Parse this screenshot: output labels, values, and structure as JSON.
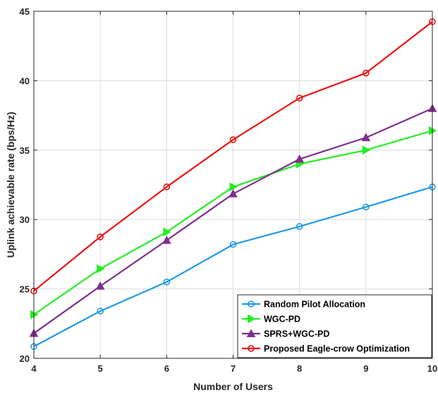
{
  "chart_data": {
    "type": "line",
    "xlabel": "Number of Users",
    "ylabel": "Uplink achievable rate (bps/Hz)",
    "x": [
      4,
      5,
      6,
      7,
      8,
      9,
      10
    ],
    "xlim": [
      4,
      10
    ],
    "ylim": [
      20,
      45
    ],
    "xticks": [
      "4",
      "5",
      "6",
      "7",
      "8",
      "9",
      "10"
    ],
    "yticks": [
      "20",
      "25",
      "30",
      "35",
      "40",
      "45"
    ],
    "grid": true,
    "legend_position": "bottom-right",
    "series": [
      {
        "name": "Random Pilot Allocation",
        "color": "#1f9be6",
        "marker": "circle",
        "values": [
          20.85,
          23.4,
          25.5,
          28.2,
          29.5,
          30.9,
          32.35
        ]
      },
      {
        "name": "WGC-PD",
        "color": "#22ee22",
        "marker": "triangle-right",
        "values": [
          23.15,
          26.45,
          29.1,
          32.35,
          34.0,
          35.0,
          36.4
        ]
      },
      {
        "name": "SPRS+WGC-PD",
        "color": "#7e2f8e",
        "marker": "triangle-up",
        "values": [
          21.8,
          25.2,
          28.5,
          31.85,
          34.35,
          35.9,
          38.0
        ]
      },
      {
        "name": "Proposed Eagle-crow Optimization",
        "color": "#ee1111",
        "marker": "circle",
        "values": [
          24.85,
          28.75,
          32.35,
          35.75,
          38.75,
          40.55,
          44.25
        ]
      }
    ]
  }
}
